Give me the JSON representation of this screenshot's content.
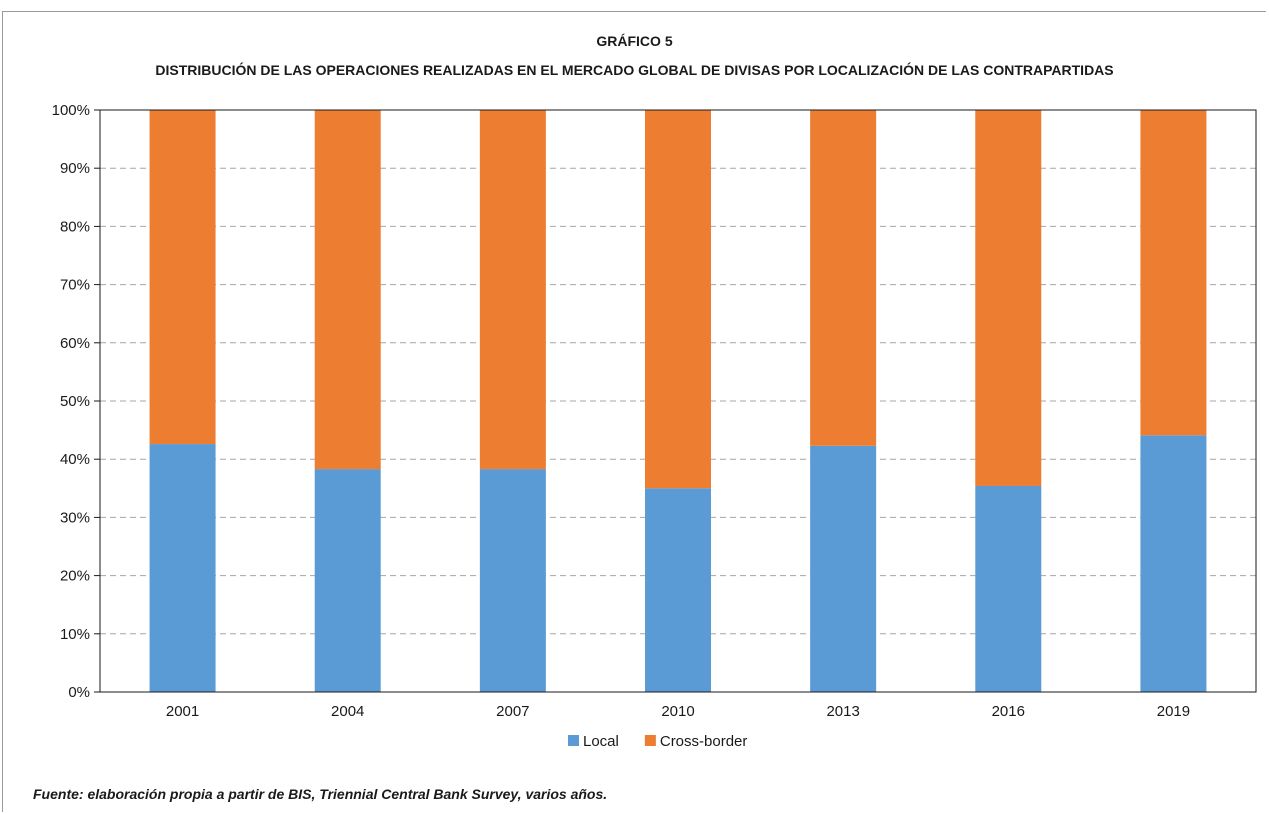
{
  "chart_data": {
    "type": "bar",
    "stacked": true,
    "title": "GRÁFICO 5",
    "subtitle": "DISTRIBUCIÓN DE LAS OPERACIONES REALIZADAS EN EL MERCADO GLOBAL DE DIVISAS POR LOCALIZACIÓN DE LAS CONTRAPARTIDAS",
    "categories": [
      "2001",
      "2004",
      "2007",
      "2010",
      "2013",
      "2016",
      "2019"
    ],
    "series": [
      {
        "name": "Local",
        "color": "#5b9bd5",
        "values": [
          42.6,
          38.3,
          38.3,
          35.0,
          42.3,
          35.4,
          44.1
        ]
      },
      {
        "name": "Cross-border",
        "color": "#ed7d31",
        "values": [
          57.4,
          61.7,
          61.7,
          65.0,
          57.7,
          64.6,
          55.9
        ]
      }
    ],
    "ylim": [
      0,
      100
    ],
    "yticks": [
      "0%",
      "10%",
      "20%",
      "30%",
      "40%",
      "50%",
      "60%",
      "70%",
      "80%",
      "90%",
      "100%"
    ],
    "grid": true,
    "legend_position": "bottom-center",
    "source": "Fuente: elaboración propia a partir de BIS, Triennial Central Bank Survey, varios años."
  }
}
